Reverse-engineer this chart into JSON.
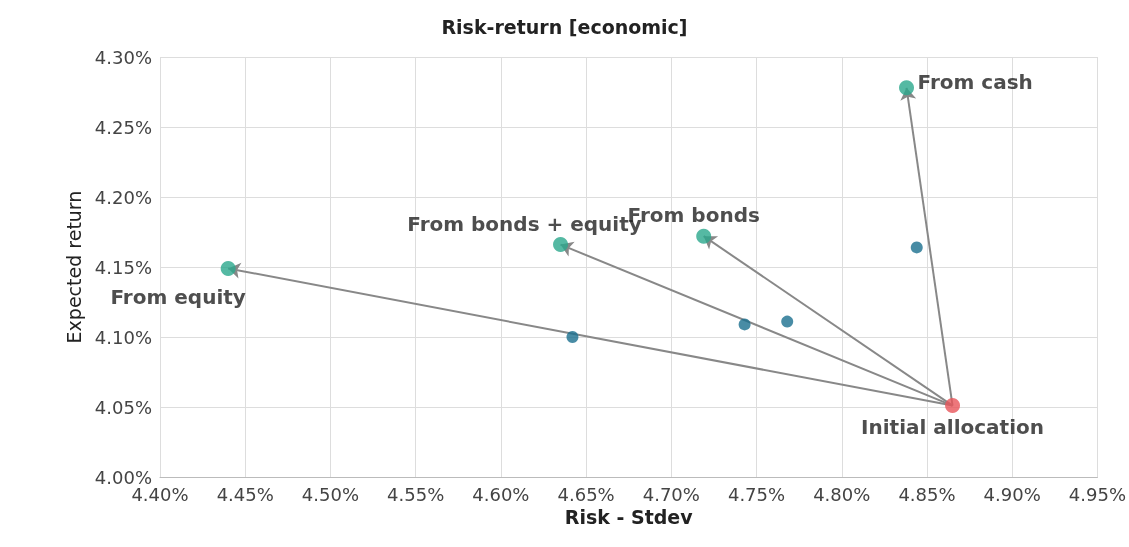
{
  "chart_data": {
    "type": "scatter",
    "title": "Risk-return [economic]",
    "xlabel": "Risk - Stdev",
    "ylabel": "Expected return",
    "xlim": [
      4.4,
      4.95
    ],
    "xticks": [
      {
        "value": 4.4,
        "label": "4.40%"
      },
      {
        "value": 4.45,
        "label": "4.45%"
      },
      {
        "value": 4.5,
        "label": "4.50%"
      },
      {
        "value": 4.55,
        "label": "4.55%"
      },
      {
        "value": 4.6,
        "label": "4.60%"
      },
      {
        "value": 4.65,
        "label": "4.65%"
      },
      {
        "value": 4.7,
        "label": "4.70%"
      },
      {
        "value": 4.75,
        "label": "4.75%"
      },
      {
        "value": 4.8,
        "label": "4.80%"
      },
      {
        "value": 4.85,
        "label": "4.85%"
      },
      {
        "value": 4.9,
        "label": "4.90%"
      },
      {
        "value": 4.95,
        "label": "4.95%"
      }
    ],
    "ylim": [
      4.0,
      4.3
    ],
    "yticks": [
      {
        "value": 4.0,
        "label": "4.00%"
      },
      {
        "value": 4.05,
        "label": "4.05%"
      },
      {
        "value": 4.1,
        "label": "4.10%"
      },
      {
        "value": 4.15,
        "label": "4.15%"
      },
      {
        "value": 4.2,
        "label": "4.20%"
      },
      {
        "value": 4.25,
        "label": "4.25%"
      },
      {
        "value": 4.3,
        "label": "4.30%"
      }
    ],
    "grid": true,
    "marker": "circle",
    "series": [
      {
        "color": "#2ba88c",
        "x": [
          4.838,
          4.719,
          4.635,
          4.44
        ],
        "values": [
          4.278,
          4.172,
          4.166,
          4.149
        ]
      },
      {
        "color": "#1a6f8f",
        "x": [
          4.844,
          4.768,
          4.743,
          4.642
        ],
        "values": [
          4.164,
          4.111,
          4.109,
          4.1
        ]
      },
      {
        "color": "#e8555a",
        "x": [
          4.865
        ],
        "values": [
          4.051
        ]
      }
    ],
    "annotations": [
      {
        "text": "From cash",
        "x": 4.838,
        "y": 4.278
      },
      {
        "text": "From bonds",
        "x": 4.719,
        "y": 4.172
      },
      {
        "text": "From bonds + equity",
        "x": 4.635,
        "y": 4.166
      },
      {
        "text": "From equity",
        "x": 4.44,
        "y": 4.149
      },
      {
        "text": "Initial allocation",
        "x": 4.865,
        "y": 4.051
      }
    ]
  }
}
